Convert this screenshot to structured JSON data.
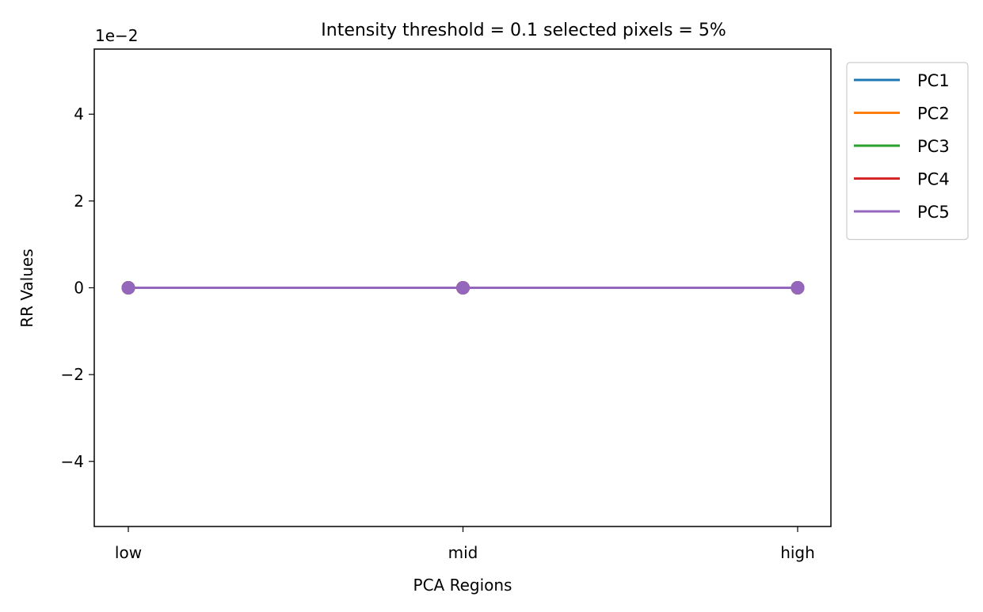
{
  "chart_data": {
    "type": "line",
    "title": "Intensity threshold = 0.1 selected pixels = 5%",
    "xlabel": "PCA Regions",
    "ylabel": "RR Values",
    "categories": [
      "low",
      "mid",
      "high"
    ],
    "ylim": [
      -0.055,
      0.055
    ],
    "yticks": [
      -0.04,
      -0.02,
      0,
      0.02,
      0.04
    ],
    "ytick_labels": [
      "−4",
      "−2",
      "0",
      "2",
      "4"
    ],
    "y_offset_label": "1e−2",
    "grid": false,
    "legend_position": "outside-top-right",
    "series": [
      {
        "name": "PC1",
        "color": "#1f77b4",
        "values": [
          0,
          0,
          0
        ]
      },
      {
        "name": "PC2",
        "color": "#ff7f0e",
        "values": [
          0,
          0,
          0
        ]
      },
      {
        "name": "PC3",
        "color": "#2ca02c",
        "values": [
          0,
          0,
          0
        ]
      },
      {
        "name": "PC4",
        "color": "#d62728",
        "values": [
          0,
          0,
          0
        ]
      },
      {
        "name": "PC5",
        "color": "#9467bd",
        "values": [
          0,
          0,
          0
        ]
      }
    ]
  }
}
